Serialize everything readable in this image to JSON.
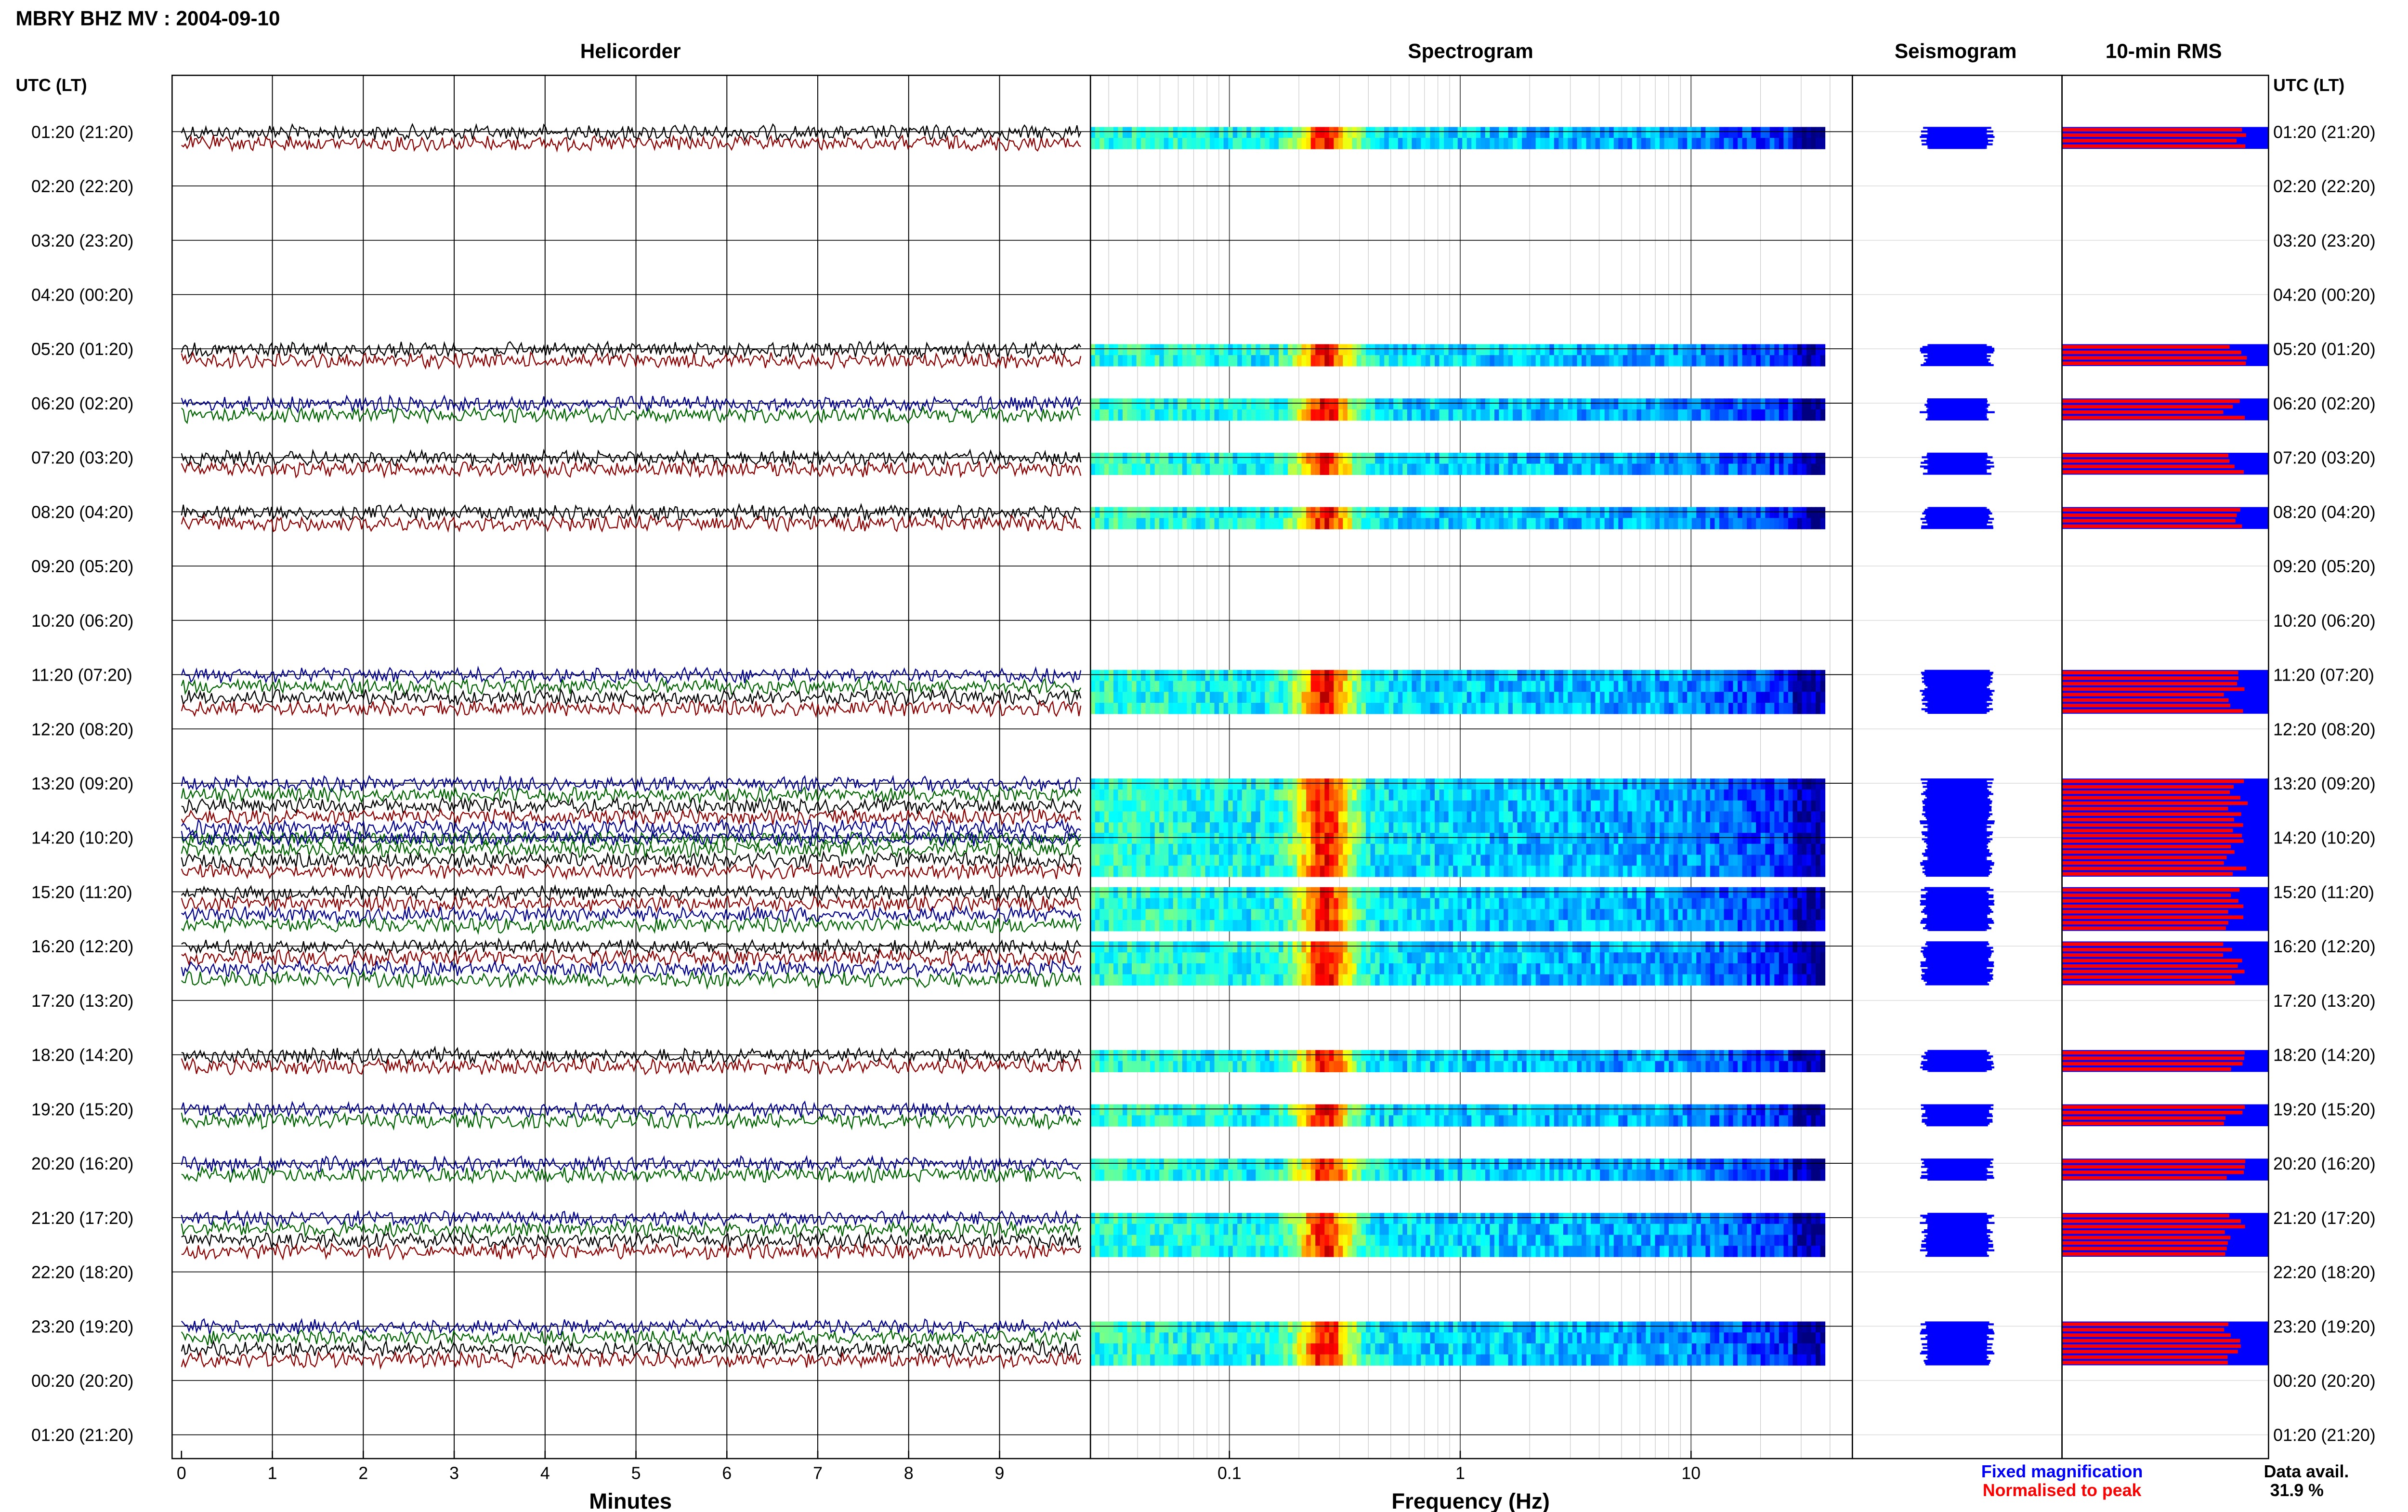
{
  "chart_data": {
    "type": "heatmap",
    "title": "MBRY BHZ MV : 2004-09-10",
    "rows": [
      {
        "utc": "01:20",
        "lt": "21:20",
        "has_data": true,
        "traces": 2,
        "colors": [
          "black",
          "darkred"
        ]
      },
      {
        "utc": "02:20",
        "lt": "22:20",
        "has_data": false,
        "traces": 0,
        "colors": []
      },
      {
        "utc": "03:20",
        "lt": "23:20",
        "has_data": false,
        "traces": 0,
        "colors": []
      },
      {
        "utc": "04:20",
        "lt": "00:20",
        "has_data": false,
        "traces": 0,
        "colors": []
      },
      {
        "utc": "05:20",
        "lt": "01:20",
        "has_data": true,
        "traces": 2,
        "colors": [
          "black",
          "darkred"
        ]
      },
      {
        "utc": "06:20",
        "lt": "02:20",
        "has_data": true,
        "traces": 2,
        "colors": [
          "blue",
          "green"
        ]
      },
      {
        "utc": "07:20",
        "lt": "03:20",
        "has_data": true,
        "traces": 2,
        "colors": [
          "black",
          "darkred"
        ]
      },
      {
        "utc": "08:20",
        "lt": "04:20",
        "has_data": true,
        "traces": 2,
        "colors": [
          "black",
          "darkred"
        ]
      },
      {
        "utc": "09:20",
        "lt": "05:20",
        "has_data": false,
        "traces": 0,
        "colors": []
      },
      {
        "utc": "10:20",
        "lt": "06:20",
        "has_data": false,
        "traces": 0,
        "colors": []
      },
      {
        "utc": "11:20",
        "lt": "07:20",
        "has_data": true,
        "traces": 4,
        "colors": [
          "blue",
          "green",
          "black",
          "darkred"
        ]
      },
      {
        "utc": "12:20",
        "lt": "08:20",
        "has_data": false,
        "traces": 0,
        "colors": []
      },
      {
        "utc": "13:20",
        "lt": "09:20",
        "has_data": true,
        "traces": 6,
        "colors": [
          "blue",
          "green",
          "black",
          "darkred",
          "blue",
          "green"
        ]
      },
      {
        "utc": "14:20",
        "lt": "10:20",
        "has_data": true,
        "traces": 4,
        "colors": [
          "blue",
          "green",
          "black",
          "darkred"
        ]
      },
      {
        "utc": "15:20",
        "lt": "11:20",
        "has_data": true,
        "traces": 4,
        "colors": [
          "black",
          "darkred",
          "blue",
          "green"
        ]
      },
      {
        "utc": "16:20",
        "lt": "12:20",
        "has_data": true,
        "traces": 4,
        "colors": [
          "black",
          "darkred",
          "blue",
          "green"
        ]
      },
      {
        "utc": "17:20",
        "lt": "13:20",
        "has_data": false,
        "traces": 0,
        "colors": []
      },
      {
        "utc": "18:20",
        "lt": "14:20",
        "has_data": true,
        "traces": 2,
        "colors": [
          "black",
          "darkred"
        ]
      },
      {
        "utc": "19:20",
        "lt": "15:20",
        "has_data": true,
        "traces": 2,
        "colors": [
          "blue",
          "green"
        ]
      },
      {
        "utc": "20:20",
        "lt": "16:20",
        "has_data": true,
        "traces": 2,
        "colors": [
          "blue",
          "green"
        ]
      },
      {
        "utc": "21:20",
        "lt": "17:20",
        "has_data": true,
        "traces": 4,
        "colors": [
          "blue",
          "green",
          "black",
          "darkred"
        ]
      },
      {
        "utc": "22:20",
        "lt": "18:20",
        "has_data": false,
        "traces": 0,
        "colors": []
      },
      {
        "utc": "23:20",
        "lt": "19:20",
        "has_data": true,
        "traces": 4,
        "colors": [
          "blue",
          "green",
          "black",
          "darkred"
        ]
      },
      {
        "utc": "00:20",
        "lt": "20:20",
        "has_data": false,
        "traces": 0,
        "colors": []
      },
      {
        "utc": "01:20",
        "lt": "21:20",
        "has_data": false,
        "traces": 0,
        "colors": []
      }
    ],
    "panels": {
      "helicorder": {
        "title": "Helicorder",
        "xlabel": "Minutes",
        "xticks": [
          "0",
          "1",
          "2",
          "3",
          "4",
          "5",
          "6",
          "7",
          "8",
          "9"
        ],
        "xlim": [
          0,
          10
        ]
      },
      "spectrogram": {
        "title": "Spectrogram",
        "xlabel": "Frequency (Hz)",
        "xscale": "log",
        "xticks": [
          "0.1",
          "1",
          "10"
        ],
        "xlim": [
          0.025,
          50
        ],
        "colormap": "jet",
        "peak_band_hz": [
          0.2,
          0.35
        ]
      },
      "seismogram": {
        "title": "Seismogram"
      },
      "rms": {
        "title": "10-min RMS",
        "legend": [
          {
            "label": "Fixed magnification",
            "color": "#0000ff"
          },
          {
            "label": "Normalised to peak",
            "color": "#ff0000"
          }
        ]
      }
    },
    "row_axis_label": "UTC (LT)",
    "data_availability": {
      "label": "Data avail.",
      "value": "31.9 %"
    },
    "colors": {
      "black": "#000000",
      "darkred": "#8b0000",
      "blue": "#00008b",
      "green": "#006400",
      "fixed": "#0000ff",
      "normalised": "#ff0000"
    }
  }
}
